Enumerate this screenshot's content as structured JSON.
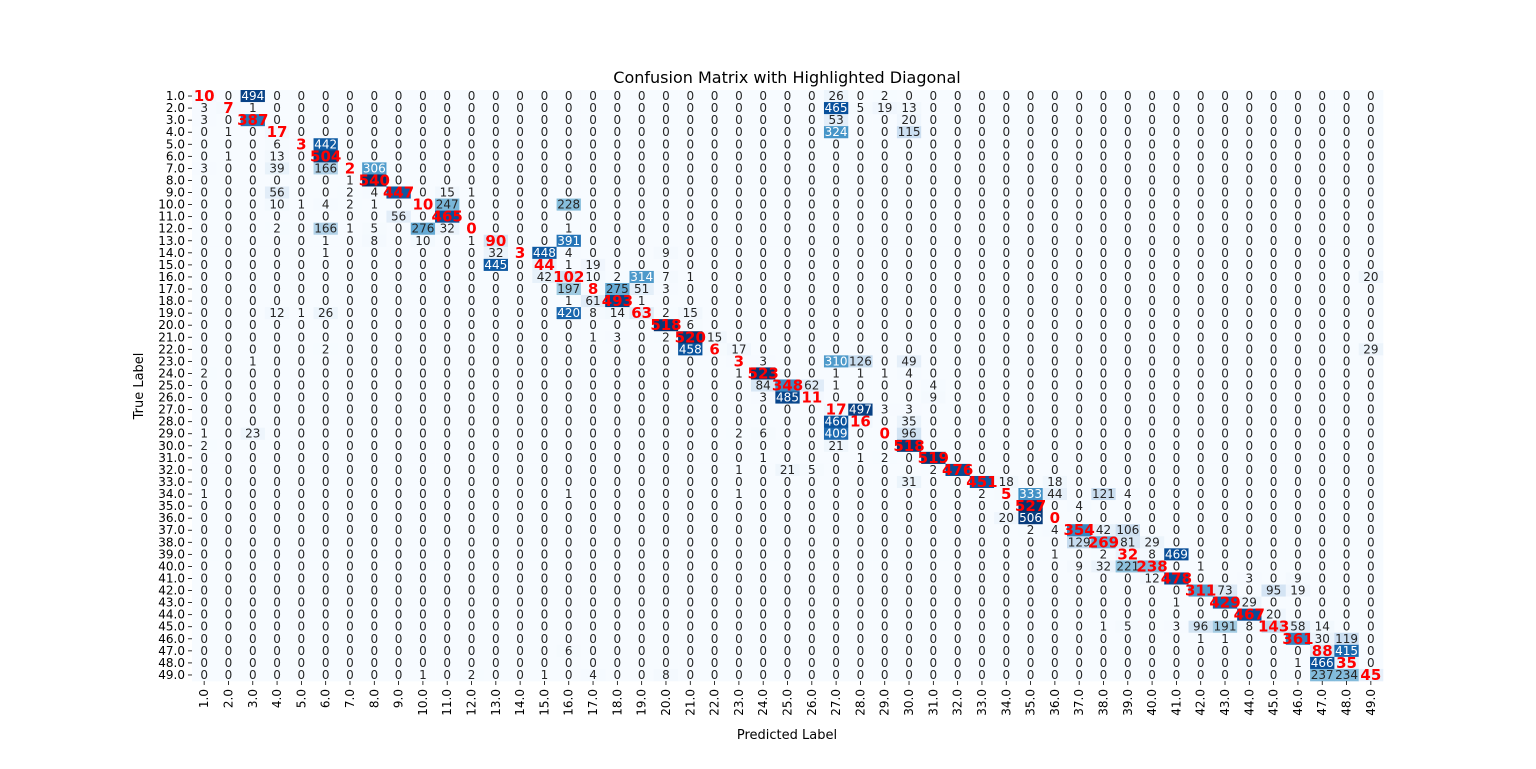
{
  "chart_data": {
    "type": "heatmap",
    "title": "Confusion Matrix with Highlighted Diagonal",
    "xlabel": "Predicted Label",
    "ylabel": "True Label",
    "labels": [
      "1.0",
      "2.0",
      "3.0",
      "4.0",
      "5.0",
      "6.0",
      "7.0",
      "8.0",
      "9.0",
      "10.0",
      "11.0",
      "12.0",
      "13.0",
      "14.0",
      "15.0",
      "16.0",
      "17.0",
      "18.0",
      "19.0",
      "20.0",
      "21.0",
      "22.0",
      "23.0",
      "24.0",
      "25.0",
      "26.0",
      "27.0",
      "28.0",
      "29.0",
      "30.0",
      "31.0",
      "32.0",
      "33.0",
      "34.0",
      "35.0",
      "36.0",
      "37.0",
      "38.0",
      "39.0",
      "40.0",
      "41.0",
      "42.0",
      "43.0",
      "44.0",
      "45.0",
      "46.0",
      "47.0",
      "48.0",
      "49.0"
    ],
    "colormap": [
      "#f7fbff",
      "#deebf7",
      "#c6dbef",
      "#9ecae1",
      "#6baed6",
      "#4292c6",
      "#2171b5",
      "#08519c",
      "#08306b"
    ],
    "vmax": 530,
    "diagonal_color": "#ff0000",
    "entries": [
      [
        0,
        0,
        10
      ],
      [
        0,
        1,
        0
      ],
      [
        0,
        2,
        494
      ],
      [
        0,
        26,
        26
      ],
      [
        0,
        27,
        0
      ],
      [
        0,
        28,
        2
      ],
      [
        0,
        29,
        0
      ],
      [
        1,
        0,
        3
      ],
      [
        1,
        1,
        7
      ],
      [
        1,
        2,
        1
      ],
      [
        1,
        26,
        465
      ],
      [
        1,
        27,
        5
      ],
      [
        1,
        28,
        19
      ],
      [
        1,
        29,
        13
      ],
      [
        2,
        0,
        3
      ],
      [
        2,
        1,
        0
      ],
      [
        2,
        2,
        387
      ],
      [
        2,
        26,
        53
      ],
      [
        2,
        28,
        0
      ],
      [
        2,
        29,
        20
      ],
      [
        3,
        1,
        1
      ],
      [
        3,
        2,
        0
      ],
      [
        3,
        3,
        17
      ],
      [
        3,
        26,
        324
      ],
      [
        3,
        29,
        115
      ],
      [
        4,
        3,
        6
      ],
      [
        4,
        4,
        3
      ],
      [
        4,
        5,
        442
      ],
      [
        5,
        1,
        1
      ],
      [
        5,
        3,
        13
      ],
      [
        5,
        4,
        0
      ],
      [
        5,
        5,
        504
      ],
      [
        6,
        0,
        3
      ],
      [
        6,
        3,
        39
      ],
      [
        6,
        5,
        166
      ],
      [
        6,
        6,
        2
      ],
      [
        6,
        7,
        306
      ],
      [
        7,
        3,
        0
      ],
      [
        7,
        6,
        1
      ],
      [
        7,
        7,
        540
      ],
      [
        8,
        3,
        56
      ],
      [
        8,
        5,
        0
      ],
      [
        8,
        6,
        2
      ],
      [
        8,
        7,
        4
      ],
      [
        8,
        8,
        447
      ],
      [
        8,
        9,
        0
      ],
      [
        8,
        10,
        15
      ],
      [
        8,
        11,
        1
      ],
      [
        9,
        3,
        10
      ],
      [
        9,
        4,
        1
      ],
      [
        9,
        5,
        4
      ],
      [
        9,
        6,
        2
      ],
      [
        9,
        7,
        1
      ],
      [
        9,
        8,
        0
      ],
      [
        9,
        9,
        10
      ],
      [
        9,
        10,
        247
      ],
      [
        9,
        15,
        228
      ],
      [
        10,
        4,
        0
      ],
      [
        10,
        7,
        0
      ],
      [
        10,
        8,
        56
      ],
      [
        10,
        9,
        0
      ],
      [
        10,
        10,
        465
      ],
      [
        10,
        15,
        0
      ],
      [
        11,
        3,
        2
      ],
      [
        11,
        5,
        166
      ],
      [
        11,
        6,
        1
      ],
      [
        11,
        7,
        5
      ],
      [
        11,
        9,
        276
      ],
      [
        11,
        10,
        32
      ],
      [
        11,
        11,
        0
      ],
      [
        11,
        15,
        1
      ],
      [
        12,
        5,
        1
      ],
      [
        12,
        7,
        8
      ],
      [
        12,
        9,
        10
      ],
      [
        12,
        10,
        0
      ],
      [
        12,
        11,
        1
      ],
      [
        12,
        12,
        90
      ],
      [
        12,
        15,
        391
      ],
      [
        13,
        5,
        1
      ],
      [
        13,
        12,
        32
      ],
      [
        13,
        13,
        3
      ],
      [
        13,
        14,
        448
      ],
      [
        13,
        15,
        4
      ],
      [
        13,
        19,
        9
      ],
      [
        14,
        5,
        0
      ],
      [
        14,
        12,
        445
      ],
      [
        14,
        14,
        44
      ],
      [
        14,
        15,
        1
      ],
      [
        14,
        16,
        19
      ],
      [
        15,
        14,
        42
      ],
      [
        15,
        15,
        102
      ],
      [
        15,
        16,
        10
      ],
      [
        15,
        17,
        2
      ],
      [
        15,
        18,
        314
      ],
      [
        15,
        19,
        7
      ],
      [
        15,
        20,
        1
      ],
      [
        15,
        48,
        20
      ],
      [
        16,
        15,
        197
      ],
      [
        16,
        16,
        8
      ],
      [
        16,
        17,
        275
      ],
      [
        16,
        18,
        51
      ],
      [
        16,
        19,
        3
      ],
      [
        17,
        15,
        1
      ],
      [
        17,
        16,
        61
      ],
      [
        17,
        17,
        493
      ],
      [
        17,
        18,
        1
      ],
      [
        18,
        3,
        12
      ],
      [
        18,
        4,
        1
      ],
      [
        18,
        5,
        26
      ],
      [
        18,
        15,
        420
      ],
      [
        18,
        16,
        8
      ],
      [
        18,
        17,
        14
      ],
      [
        18,
        18,
        63
      ],
      [
        18,
        19,
        2
      ],
      [
        18,
        20,
        15
      ],
      [
        19,
        19,
        518
      ],
      [
        19,
        20,
        6
      ],
      [
        20,
        16,
        1
      ],
      [
        20,
        17,
        3
      ],
      [
        20,
        19,
        2
      ],
      [
        20,
        20,
        520
      ],
      [
        20,
        21,
        15
      ],
      [
        21,
        5,
        2
      ],
      [
        21,
        20,
        458
      ],
      [
        21,
        21,
        6
      ],
      [
        21,
        22,
        17
      ],
      [
        21,
        48,
        29
      ],
      [
        22,
        2,
        1
      ],
      [
        22,
        22,
        3
      ],
      [
        22,
        23,
        3
      ],
      [
        22,
        26,
        310
      ],
      [
        22,
        27,
        126
      ],
      [
        22,
        29,
        49
      ],
      [
        23,
        0,
        2
      ],
      [
        23,
        22,
        1
      ],
      [
        23,
        23,
        523
      ],
      [
        23,
        26,
        1
      ],
      [
        23,
        27,
        1
      ],
      [
        23,
        28,
        1
      ],
      [
        23,
        29,
        4
      ],
      [
        24,
        23,
        84
      ],
      [
        24,
        24,
        348
      ],
      [
        24,
        25,
        62
      ],
      [
        24,
        26,
        1
      ],
      [
        24,
        30,
        4
      ],
      [
        25,
        23,
        3
      ],
      [
        25,
        24,
        485
      ],
      [
        25,
        25,
        11
      ],
      [
        25,
        26,
        0
      ],
      [
        25,
        30,
        9
      ],
      [
        26,
        26,
        17
      ],
      [
        26,
        27,
        497
      ],
      [
        26,
        28,
        3
      ],
      [
        26,
        29,
        3
      ],
      [
        27,
        26,
        460
      ],
      [
        27,
        27,
        16
      ],
      [
        27,
        29,
        35
      ],
      [
        28,
        0,
        1
      ],
      [
        28,
        2,
        23
      ],
      [
        28,
        22,
        2
      ],
      [
        28,
        23,
        6
      ],
      [
        28,
        26,
        409
      ],
      [
        28,
        28,
        0
      ],
      [
        28,
        29,
        96
      ],
      [
        29,
        0,
        2
      ],
      [
        29,
        26,
        21
      ],
      [
        29,
        28,
        0
      ],
      [
        29,
        29,
        518
      ],
      [
        30,
        23,
        1
      ],
      [
        30,
        27,
        1
      ],
      [
        30,
        28,
        2
      ],
      [
        30,
        29,
        0
      ],
      [
        30,
        30,
        519
      ],
      [
        31,
        22,
        1
      ],
      [
        31,
        24,
        21
      ],
      [
        31,
        25,
        5
      ],
      [
        31,
        30,
        2
      ],
      [
        31,
        31,
        476
      ],
      [
        31,
        32,
        0
      ],
      [
        32,
        29,
        31
      ],
      [
        32,
        31,
        0
      ],
      [
        32,
        32,
        451
      ],
      [
        32,
        33,
        18
      ],
      [
        32,
        35,
        18
      ],
      [
        33,
        0,
        1
      ],
      [
        33,
        15,
        1
      ],
      [
        33,
        22,
        1
      ],
      [
        33,
        32,
        2
      ],
      [
        33,
        33,
        5
      ],
      [
        33,
        34,
        333
      ],
      [
        33,
        35,
        44
      ],
      [
        33,
        36,
        0
      ],
      [
        33,
        37,
        121
      ],
      [
        33,
        38,
        4
      ],
      [
        34,
        33,
        0
      ],
      [
        34,
        34,
        527
      ],
      [
        34,
        35,
        0
      ],
      [
        34,
        36,
        4
      ],
      [
        35,
        33,
        20
      ],
      [
        35,
        34,
        506
      ],
      [
        35,
        35,
        0
      ],
      [
        36,
        34,
        2
      ],
      [
        36,
        35,
        4
      ],
      [
        36,
        36,
        354
      ],
      [
        36,
        37,
        42
      ],
      [
        36,
        38,
        106
      ],
      [
        37,
        36,
        129
      ],
      [
        37,
        37,
        269
      ],
      [
        37,
        38,
        81
      ],
      [
        37,
        39,
        29
      ],
      [
        38,
        35,
        1
      ],
      [
        38,
        37,
        2
      ],
      [
        38,
        38,
        32
      ],
      [
        38,
        39,
        8
      ],
      [
        38,
        40,
        469
      ],
      [
        39,
        36,
        9
      ],
      [
        39,
        37,
        32
      ],
      [
        39,
        38,
        221
      ],
      [
        39,
        39,
        238
      ],
      [
        39,
        40,
        0
      ],
      [
        39,
        41,
        1
      ],
      [
        40,
        39,
        12
      ],
      [
        40,
        40,
        478
      ],
      [
        40,
        43,
        3
      ],
      [
        40,
        45,
        9
      ],
      [
        41,
        40,
        0
      ],
      [
        41,
        41,
        311
      ],
      [
        41,
        42,
        73
      ],
      [
        41,
        43,
        0
      ],
      [
        41,
        44,
        95
      ],
      [
        41,
        45,
        19
      ],
      [
        42,
        40,
        1
      ],
      [
        42,
        41,
        0
      ],
      [
        42,
        42,
        429
      ],
      [
        42,
        43,
        29
      ],
      [
        43,
        42,
        0
      ],
      [
        43,
        43,
        467
      ],
      [
        43,
        44,
        20
      ],
      [
        44,
        37,
        1
      ],
      [
        44,
        38,
        5
      ],
      [
        44,
        40,
        3
      ],
      [
        44,
        41,
        96
      ],
      [
        44,
        42,
        191
      ],
      [
        44,
        43,
        8
      ],
      [
        44,
        44,
        143
      ],
      [
        44,
        45,
        58
      ],
      [
        44,
        46,
        14
      ],
      [
        45,
        41,
        1
      ],
      [
        45,
        42,
        1
      ],
      [
        45,
        45,
        361
      ],
      [
        45,
        46,
        30
      ],
      [
        45,
        47,
        119
      ],
      [
        46,
        15,
        6
      ],
      [
        46,
        46,
        88
      ],
      [
        46,
        47,
        415
      ],
      [
        47,
        45,
        1
      ],
      [
        47,
        46,
        466
      ],
      [
        47,
        47,
        35
      ],
      [
        48,
        9,
        1
      ],
      [
        48,
        11,
        2
      ],
      [
        48,
        14,
        1
      ],
      [
        48,
        16,
        4
      ],
      [
        48,
        19,
        8
      ],
      [
        48,
        46,
        237
      ],
      [
        48,
        47,
        234
      ],
      [
        48,
        48,
        45
      ]
    ]
  }
}
